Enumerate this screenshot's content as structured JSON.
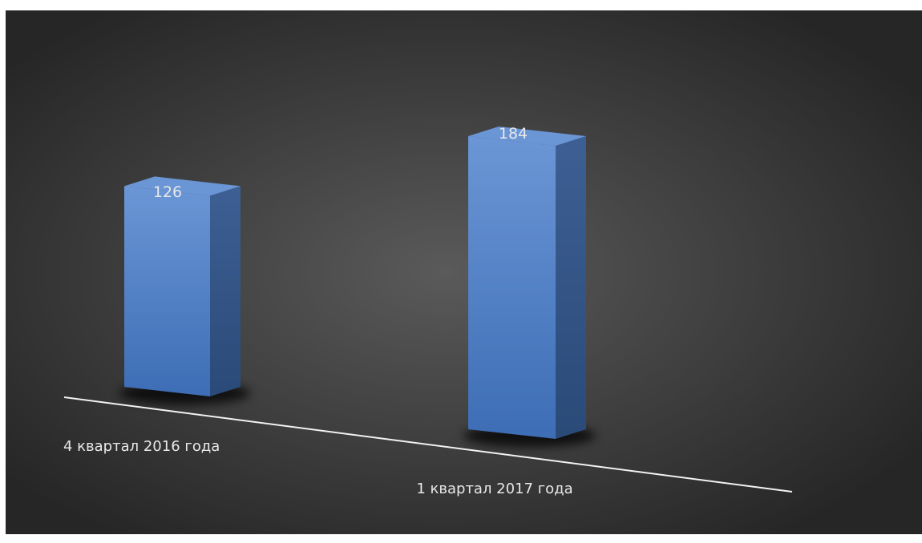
{
  "chart_data": {
    "type": "bar",
    "style": "3d-column",
    "categories": [
      "4 квартал 2016 года",
      "1 квартал 2017 года"
    ],
    "series": [
      {
        "values": [
          126,
          184
        ]
      }
    ],
    "data_labels": [
      "126",
      "184"
    ],
    "title": "",
    "xlabel": "",
    "ylabel": "",
    "ylim": [
      0,
      200
    ],
    "grid": false,
    "legend": "none",
    "colors": {
      "background_center": "#5a5a5a",
      "background_edge": "#262626",
      "bar_front": "#4a7cc5",
      "bar_side": "#2f5182",
      "bar_top": "#6b96d6",
      "axis_line": "#f2f2f2",
      "label_text": "#e8e8e8"
    }
  }
}
